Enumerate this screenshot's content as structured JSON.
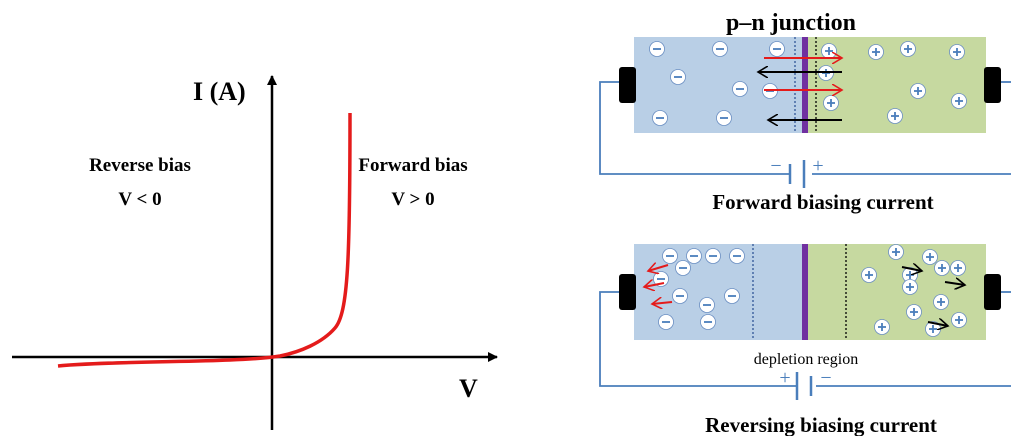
{
  "iv_graph": {
    "y_axis_label": "I (A)",
    "x_axis_label": "V",
    "reverse_label": "Reverse bias",
    "reverse_condition": "V < 0",
    "forward_label": "Forward bias",
    "forward_condition": "V > 0",
    "curve_color": "#e41b1b"
  },
  "junction": {
    "title": "p–n junction",
    "forward_caption": "Forward biasing current",
    "reverse_caption": "Reversing biasing current",
    "depletion_label": "depletion region",
    "p_region_color": "#b9cfe6",
    "n_region_color": "#c6d9a0",
    "junction_color": "#7030a0",
    "battery_negative": "−",
    "battery_positive": "+"
  }
}
